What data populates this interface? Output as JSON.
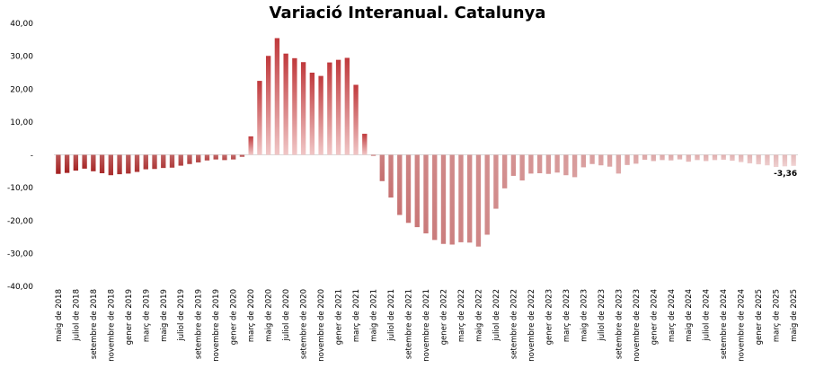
{
  "chart_data": {
    "type": "bar",
    "title": "Variació Interanual. Catalunya",
    "xlabel": "",
    "ylabel": "",
    "ylim": [
      -40,
      40
    ],
    "yticks": [
      "40,00",
      "30,00",
      "20,00",
      "10,00",
      "-",
      "-10,00",
      "-20,00",
      "-30,00",
      "-40,00"
    ],
    "grid": false,
    "legend": "none",
    "colors": {
      "negative_start": "#a31f1f",
      "negative_end": "#f0d4d4",
      "positive_top": "#c0393c",
      "positive_bottom": "#f0c6c6"
    },
    "categories": [
      "maig de 2018",
      "juny de 2018",
      "juliol de 2018",
      "agost de 2018",
      "setembre de 2018",
      "octubre de 2018",
      "novembre de 2018",
      "desembre de 2018",
      "gener de 2019",
      "febrer de 2019",
      "març de 2019",
      "abril de 2019",
      "maig de 2019",
      "juny de 2019",
      "juliol de 2019",
      "agost de 2019",
      "setembre de 2019",
      "octubre de 2019",
      "novembre de 2019",
      "desembre de 2019",
      "gener de 2020",
      "febrer de 2020",
      "març de 2020",
      "abril de 2020",
      "maig de 2020",
      "juny de 2020",
      "juliol de 2020",
      "agost de 2020",
      "setembre de 2020",
      "octubre de 2020",
      "novembre de 2020",
      "desembre de 2020",
      "gener de 2021",
      "febrer de 2021",
      "març de 2021",
      "abril de 2021",
      "maig de 2021",
      "juny de 2021",
      "juliol de 2021",
      "agost de 2021",
      "setembre de 2021",
      "octubre de 2021",
      "novembre de 2021",
      "desembre de 2021",
      "gener de 2022",
      "febrer de 2022",
      "març de 2022",
      "abril de 2022",
      "maig de 2022",
      "juny de 2022",
      "juliol de 2022",
      "agost de 2022",
      "setembre de 2022",
      "octubre de 2022",
      "novembre de 2022",
      "desembre de 2022",
      "gener de 2023",
      "febrer de 2023",
      "març de 2023",
      "abril de 2023",
      "maig de 2023",
      "juny de 2023",
      "juliol de 2023",
      "agost de 2023",
      "setembre de 2023",
      "octubre de 2023",
      "novembre de 2023",
      "desembre de 2023",
      "gener de 2024",
      "febrer de 2024",
      "març de 2024",
      "abril de 2024",
      "maig de 2024",
      "juny de 2024",
      "juliol de 2024",
      "agost de 2024",
      "setembre de 2024",
      "octubre de 2024",
      "novembre de 2024",
      "desembre de 2024",
      "gener de 2025",
      "febrer de 2025",
      "març de 2025",
      "abril de 2025",
      "maig de 2025"
    ],
    "values": [
      -5.8,
      -5.5,
      -4.8,
      -4.2,
      -5.0,
      -5.6,
      -6.2,
      -5.9,
      -5.7,
      -5.2,
      -4.4,
      -4.3,
      -4.0,
      -3.9,
      -3.3,
      -2.8,
      -2.3,
      -1.7,
      -1.4,
      -1.6,
      -1.4,
      -0.6,
      5.6,
      22.5,
      30.1,
      35.5,
      30.8,
      29.4,
      28.2,
      25.0,
      24.0,
      28.1,
      28.9,
      29.5,
      21.3,
      6.4,
      -0.3,
      -8.0,
      -13.0,
      -18.3,
      -20.7,
      -22.0,
      -23.9,
      -25.9,
      -27.1,
      -27.3,
      -26.6,
      -26.7,
      -27.9,
      -24.3,
      -16.4,
      -10.2,
      -6.4,
      -7.8,
      -5.7,
      -5.6,
      -5.8,
      -5.4,
      -6.2,
      -6.8,
      -3.8,
      -2.8,
      -3.2,
      -3.6,
      -5.7,
      -3.1,
      -2.7,
      -1.5,
      -1.9,
      -1.6,
      -1.7,
      -1.4,
      -2.1,
      -1.6,
      -1.9,
      -1.6,
      -1.5,
      -1.8,
      -2.2,
      -2.6,
      -2.9,
      -3.2,
      -3.7,
      -3.5,
      -3.36
    ],
    "data_labels": [
      {
        "category": "maig de 2025",
        "label": "-3,36"
      }
    ]
  }
}
